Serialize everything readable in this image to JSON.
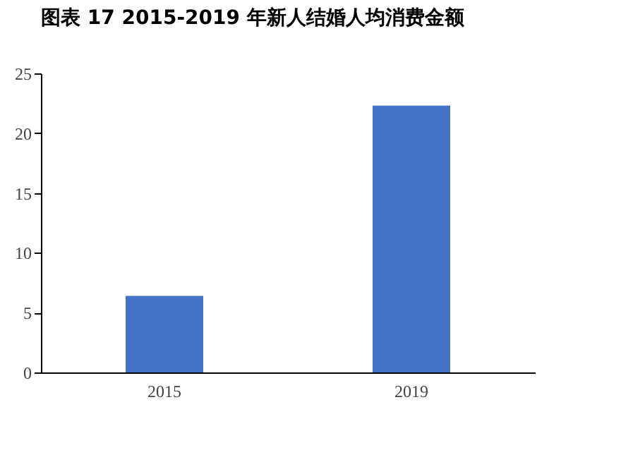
{
  "chart_data": {
    "type": "bar",
    "title": "图表 17 2015-2019 年新人结婚人均消费金额",
    "categories": [
      "2015",
      "2019"
    ],
    "values": [
      6.4,
      22.3
    ],
    "color": "#4472c4",
    "ylim": [
      0,
      25
    ],
    "yticks": [
      0,
      5,
      10,
      15,
      20,
      25
    ],
    "grid": false
  }
}
